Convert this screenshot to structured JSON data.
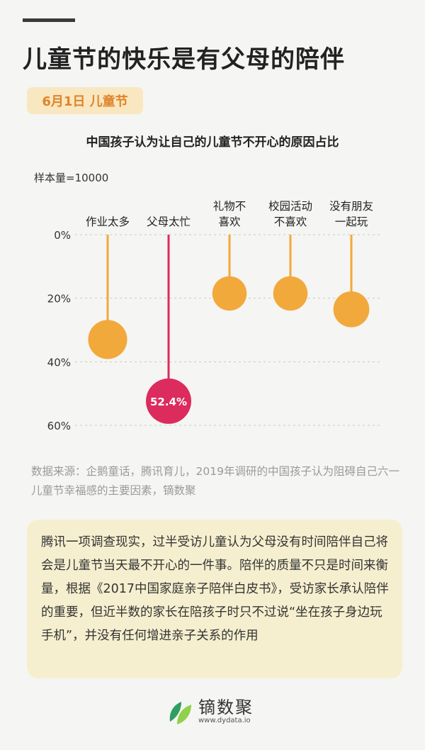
{
  "header": {
    "title": "儿童节的快乐是有父母的陪伴",
    "date_badge": "6月1日 儿童节"
  },
  "chart_data": {
    "type": "scatter",
    "title": "中国孩子认为让自己的儿童节不开心的原因占比",
    "sample_size": "样本量=10000",
    "y_ticks": [
      "0%",
      "20%",
      "40%",
      "60%"
    ],
    "ylim": [
      0,
      60
    ],
    "grid": true,
    "categories": [
      [
        "作业太多"
      ],
      [
        "父母太忙"
      ],
      [
        "礼物不",
        "喜欢"
      ],
      [
        "校园活动",
        "不喜欢"
      ],
      [
        "没有朋友",
        "一起玩"
      ]
    ],
    "values": [
      33,
      52.4,
      18.5,
      18.5,
      23.5
    ],
    "data_labels": [
      "",
      "52.4%",
      "",
      "",
      ""
    ],
    "highlight_index": 1,
    "colors": {
      "normal": "#f2a93b",
      "highlight": "#dc2b5d"
    }
  },
  "source": "数据来源：企鹅童话，腾讯育儿，2019年调研的中国孩子认为阻碍自己六一儿童节幸福感的主要因素，镝数聚",
  "note": "腾讯一项调查现实，过半受访儿童认为父母没有时间陪伴自己将会是儿童节当天最不开心的一件事。陪伴的质量不只是时间来衡量，根据《2017中国家庭亲子陪伴白皮书》，受访家长承认陪伴的重要，但近半数的家长在陪孩子时只不过说“坐在孩子身边玩手机”，并没有任何增进亲子关系的作用",
  "brand": {
    "name": "镝数聚",
    "url": "www.dydata.io",
    "logo_icon": "leaf-icon",
    "colors": {
      "leaf_dark": "#2e9e63",
      "leaf_light": "#8fd14a"
    }
  }
}
